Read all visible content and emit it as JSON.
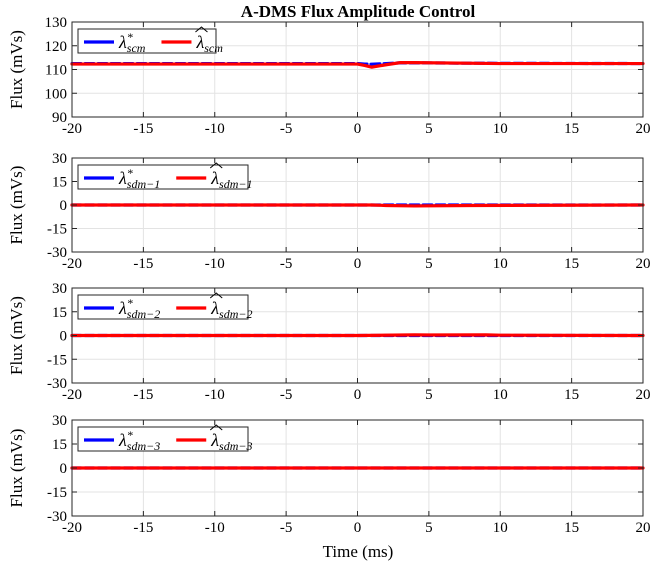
{
  "figure": {
    "title": "A-DMS Flux Amplitude Control",
    "xlabel": "Time (ms)"
  },
  "chart_data": [
    {
      "type": "line",
      "ylabel": "Flux (mVs)",
      "xlim": [
        -20,
        20
      ],
      "ylim": [
        90,
        130
      ],
      "xticks": [
        -20,
        -15,
        -10,
        -5,
        0,
        5,
        10,
        15,
        20
      ],
      "yticks": [
        90,
        100,
        110,
        120,
        130
      ],
      "grid": true,
      "legend_position": "top-left",
      "series": [
        {
          "name": "λ*scm",
          "name_base": "λ",
          "name_sup": "*",
          "name_sub": "scm",
          "hat": false,
          "color": "#0000ff",
          "x": [
            -20,
            -10,
            0,
            0.5,
            1,
            2,
            3,
            4,
            10,
            20
          ],
          "y": [
            112.5,
            112.5,
            112.5,
            112.3,
            112.2,
            112.5,
            112.8,
            112.8,
            112.6,
            112.5
          ]
        },
        {
          "name": "λscm",
          "name_base": "λ",
          "name_sup": "",
          "name_sub": "scm",
          "hat": true,
          "color": "#ff0000",
          "x": [
            -20,
            -10,
            0,
            0.5,
            1,
            2,
            3,
            4,
            10,
            20
          ],
          "y": [
            112.3,
            112.3,
            112.3,
            111.7,
            111.0,
            112.0,
            112.9,
            112.9,
            112.5,
            112.5
          ]
        }
      ]
    },
    {
      "type": "line",
      "ylabel": "Flux (mVs)",
      "xlim": [
        -20,
        20
      ],
      "ylim": [
        -30,
        30
      ],
      "xticks": [
        -20,
        -15,
        -10,
        -5,
        0,
        5,
        10,
        15,
        20
      ],
      "yticks": [
        -30,
        -15,
        0,
        15,
        30
      ],
      "grid": true,
      "legend_position": "top-left",
      "series": [
        {
          "name": "λ*sdm−1",
          "name_base": "λ",
          "name_sup": "*",
          "name_sub": "sdm−1",
          "hat": false,
          "color": "#0000ff",
          "x": [
            -20,
            0,
            1,
            2,
            4,
            8,
            20
          ],
          "y": [
            0,
            0,
            0,
            0,
            0,
            0,
            0
          ]
        },
        {
          "name": "λsdm−1",
          "name_base": "λ",
          "name_sup": "",
          "name_sub": "sdm−1",
          "hat": true,
          "color": "#ff0000",
          "x": [
            -20,
            0,
            1,
            2,
            4,
            8,
            20
          ],
          "y": [
            0,
            0,
            0,
            -0.3,
            -0.6,
            -0.3,
            0
          ]
        }
      ]
    },
    {
      "type": "line",
      "ylabel": "Flux (mVs)",
      "xlim": [
        -20,
        20
      ],
      "ylim": [
        -30,
        30
      ],
      "xticks": [
        -20,
        -15,
        -10,
        -5,
        0,
        5,
        10,
        15,
        20
      ],
      "yticks": [
        -30,
        -15,
        0,
        15,
        30
      ],
      "grid": true,
      "legend_position": "top-left",
      "series": [
        {
          "name": "λ*sdm−2",
          "name_base": "λ",
          "name_sup": "*",
          "name_sub": "sdm−2",
          "hat": false,
          "color": "#0000ff",
          "x": [
            -20,
            0,
            5,
            10,
            20
          ],
          "y": [
            0,
            0,
            0,
            0,
            0
          ]
        },
        {
          "name": "λsdm−2",
          "name_base": "λ",
          "name_sup": "",
          "name_sub": "sdm−2",
          "hat": true,
          "color": "#ff0000",
          "x": [
            -20,
            0,
            4,
            5,
            9,
            10,
            20
          ],
          "y": [
            0,
            0,
            0.4,
            0.3,
            0.4,
            0.2,
            0
          ]
        }
      ]
    },
    {
      "type": "line",
      "ylabel": "Flux (mVs)",
      "xlim": [
        -20,
        20
      ],
      "ylim": [
        -30,
        30
      ],
      "xticks": [
        -20,
        -15,
        -10,
        -5,
        0,
        5,
        10,
        15,
        20
      ],
      "yticks": [
        -30,
        -15,
        0,
        15,
        30
      ],
      "grid": true,
      "legend_position": "top-left",
      "series": [
        {
          "name": "λ*sdm−3",
          "name_base": "λ",
          "name_sup": "*",
          "name_sub": "sdm−3",
          "hat": false,
          "color": "#0000ff",
          "x": [
            -20,
            0,
            20
          ],
          "y": [
            0,
            0,
            0
          ]
        },
        {
          "name": "λsdm−3",
          "name_base": "λ",
          "name_sup": "",
          "name_sub": "sdm−3",
          "hat": true,
          "color": "#ff0000",
          "x": [
            -20,
            0,
            20
          ],
          "y": [
            0,
            0,
            0
          ]
        }
      ]
    }
  ]
}
